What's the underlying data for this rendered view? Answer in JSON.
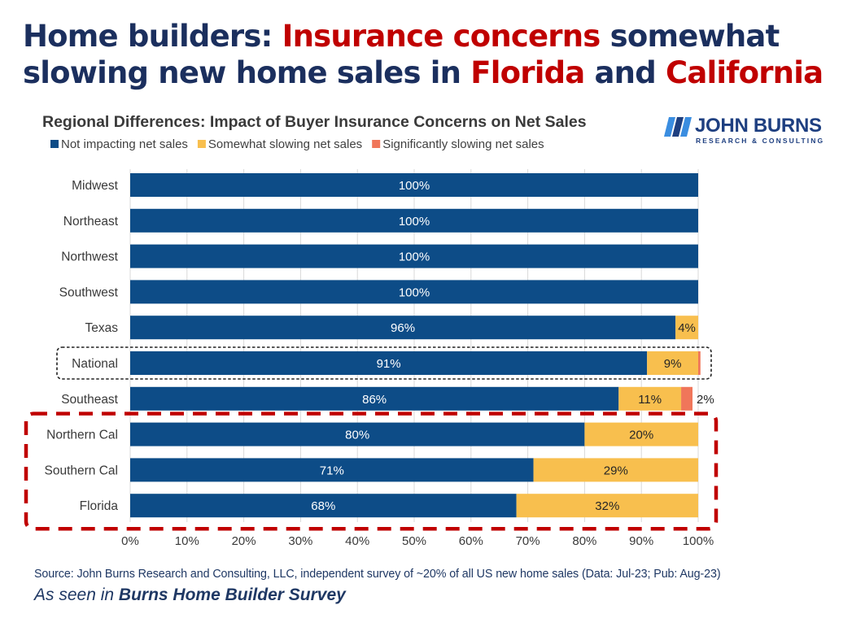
{
  "headline": {
    "part1": "Home builders: ",
    "part2": "Insurance concerns",
    "part3": " somewhat slowing new home sales in ",
    "part4": "Florida",
    "part5": " and ",
    "part6": "California"
  },
  "logo": {
    "name": "JOHN BURNS",
    "sub": "RESEARCH & CONSULTING",
    "icon": "johnburns-logo-icon"
  },
  "colors": {
    "not_impacting": "#0d4c87",
    "somewhat": "#f8bf4e",
    "significantly": "#f0765a",
    "headline_navy": "#1b2f5e",
    "headline_red": "#c00000",
    "highlight_box": "#c00000",
    "national_box": "#222222"
  },
  "chart_data": {
    "type": "bar",
    "orientation": "horizontal",
    "stacked": true,
    "title": "Regional Differences: Impact of Buyer Insurance Concerns on Net Sales",
    "xlabel": "",
    "ylabel": "",
    "xlim": [
      0,
      100
    ],
    "x_ticks": [
      "0%",
      "10%",
      "20%",
      "30%",
      "40%",
      "50%",
      "60%",
      "70%",
      "80%",
      "90%",
      "100%"
    ],
    "grid": true,
    "legend_position": "top-left",
    "categories": [
      "Midwest",
      "Northeast",
      "Northwest",
      "Southwest",
      "Texas",
      "National",
      "Southeast",
      "Northern Cal",
      "Southern Cal",
      "Florida"
    ],
    "series": [
      {
        "name": "Not impacting net sales",
        "values": [
          100,
          100,
          100,
          100,
          96,
          91,
          86,
          80,
          71,
          68
        ]
      },
      {
        "name": "Somewhat slowing net sales",
        "values": [
          0,
          0,
          0,
          0,
          4,
          9,
          11,
          20,
          29,
          32
        ]
      },
      {
        "name": "Significantly slowing net sales",
        "values": [
          0,
          0,
          0,
          0,
          0,
          0.4,
          2,
          0,
          0,
          0
        ]
      }
    ],
    "data_labels": [
      [
        "100%",
        "",
        ""
      ],
      [
        "100%",
        "",
        ""
      ],
      [
        "100%",
        "",
        ""
      ],
      [
        "100%",
        "",
        ""
      ],
      [
        "96%",
        "4%",
        ""
      ],
      [
        "91%",
        "9%",
        ""
      ],
      [
        "86%",
        "11%",
        "2%"
      ],
      [
        "80%",
        "20%",
        ""
      ],
      [
        "71%",
        "29%",
        ""
      ],
      [
        "68%",
        "32%",
        ""
      ]
    ],
    "annotations": [
      {
        "type": "dotted-box",
        "around": [
          "National"
        ]
      },
      {
        "type": "dashed-box",
        "around": [
          "Northern Cal",
          "Southern Cal",
          "Florida"
        ]
      }
    ]
  },
  "footer": {
    "source": "Source: John Burns Research and Consulting, LLC, independent survey of ~20% of all US new home sales (Data: Jul-23; Pub: Aug-23)",
    "seen_prefix": "As seen in ",
    "seen_bold": "Burns Home Builder Survey"
  }
}
